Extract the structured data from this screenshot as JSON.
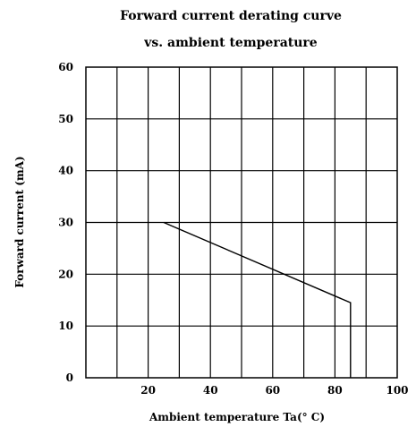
{
  "chart_data": {
    "type": "line",
    "title": "Forward current derating curve",
    "subtitle": "vs. ambient temperature",
    "xlabel": "Ambient temperature Ta(° C)",
    "ylabel": "Forward current (mA)",
    "xlim": [
      0,
      100
    ],
    "ylim": [
      0,
      60
    ],
    "x_ticks": [
      20,
      40,
      60,
      80,
      100
    ],
    "y_ticks": [
      0,
      10,
      20,
      30,
      40,
      50,
      60
    ],
    "x_grid_step": 10,
    "y_grid_step": 10,
    "grid": true,
    "legend": "none",
    "series": [
      {
        "x": [
          25,
          85,
          85
        ],
        "y": [
          30,
          14.5,
          0
        ]
      }
    ],
    "colors": {
      "line": "#000000",
      "grid": "#000000"
    }
  }
}
